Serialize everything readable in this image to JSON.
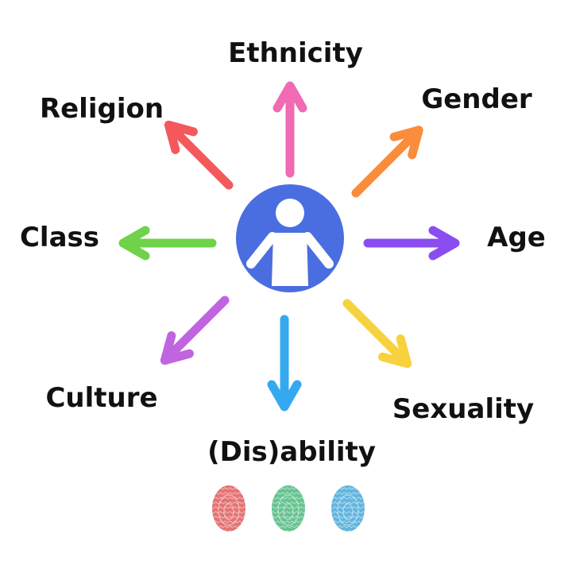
{
  "center": {
    "circle_color": "#4a6ee0",
    "icon": "person-icon"
  },
  "labels": {
    "ethnicity": "Ethnicity",
    "gender": "Gender",
    "age": "Age",
    "sexuality": "Sexuality",
    "disability": "(Dis)ability",
    "culture": "Culture",
    "class": "Class",
    "religion": "Religion"
  },
  "colors": {
    "ethnicity": "#f06bb3",
    "gender": "#fb8c3c",
    "age": "#8b4cf0",
    "sexuality": "#f7d23e",
    "disability": "#35a9f0",
    "culture": "#c064e0",
    "class": "#6fd24a",
    "religion": "#f4585a"
  },
  "fingerprints": [
    {
      "name": "fingerprint-red",
      "color": "#e05a5a"
    },
    {
      "name": "fingerprint-green",
      "color": "#4cb87c"
    },
    {
      "name": "fingerprint-blue",
      "color": "#47a8d8"
    }
  ]
}
